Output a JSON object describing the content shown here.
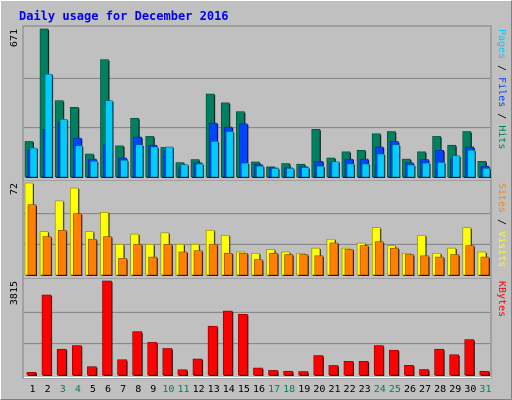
{
  "chart_data": {
    "type": "bar",
    "title": "Daily usage for December 2016",
    "days": [
      "1",
      "2",
      "3",
      "4",
      "5",
      "6",
      "7",
      "8",
      "9",
      "10",
      "11",
      "12",
      "13",
      "14",
      "15",
      "16",
      "17",
      "18",
      "19",
      "20",
      "21",
      "22",
      "23",
      "24",
      "25",
      "26",
      "27",
      "28",
      "29",
      "30",
      "31"
    ],
    "weekend_days": [
      "3",
      "4",
      "10",
      "11",
      "17",
      "18",
      "24",
      "25",
      "31"
    ],
    "panels": [
      {
        "id": "top",
        "max_label": "671",
        "ymax": 671,
        "legend": [
          {
            "text": "Pages",
            "color": "#00ccff"
          },
          {
            "text": " / ",
            "color": "#000000"
          },
          {
            "text": "Files",
            "color": "#0044ff"
          },
          {
            "text": " / ",
            "color": "#000000"
          },
          {
            "text": "Hits",
            "color": "#008060"
          }
        ],
        "series": [
          {
            "name": "Hits",
            "color": "#008060",
            "values": [
              161,
              671,
              346,
              316,
              104,
              532,
              141,
              266,
              184,
              134,
              65,
              79,
              376,
              336,
              296,
              68,
              46,
              61,
              58,
              216,
              86,
              114,
              121,
              196,
              206,
              81,
              114,
              184,
              144,
              206,
              71
            ]
          },
          {
            "name": "Files",
            "color": "#0044ff",
            "values": [
              121,
              216,
              247,
              176,
              81,
              146,
              86,
              181,
              144,
              121,
              46,
              64,
              244,
              226,
              241,
              56,
              41,
              41,
              46,
              71,
              64,
              81,
              81,
              136,
              161,
              64,
              79,
              121,
              86,
              136,
              49
            ]
          },
          {
            "name": "Pages",
            "color": "#00ccff",
            "values": [
              131,
              466,
              261,
              141,
              71,
              346,
              76,
              146,
              136,
              136,
              56,
              59,
              161,
              206,
              63,
              49,
              39,
              39,
              43,
              49,
              69,
              59,
              59,
              104,
              146,
              54,
              63,
              66,
              96,
              121,
              39
            ]
          }
        ]
      },
      {
        "id": "middle",
        "max_label": "72",
        "ymax": 72,
        "legend": [
          {
            "text": "Sites",
            "color": "#ff8000"
          },
          {
            "text": " / ",
            "color": "#000000"
          },
          {
            "text": "Visits",
            "color": "#ffff00"
          }
        ],
        "series": [
          {
            "name": "Visits",
            "color": "#ffff00",
            "values": [
              72,
              34,
              58,
              68,
              34,
              49,
              24,
              32,
              24,
              33,
              24,
              24,
              35,
              31,
              18,
              17,
              20,
              18,
              17,
              21,
              28,
              21,
              25,
              37,
              23,
              17,
              31,
              17,
              21,
              37,
              18
            ]
          },
          {
            "name": "Sites",
            "color": "#ff8000",
            "values": [
              55,
              30,
              35,
              48,
              28,
              30,
              13,
              24,
              14,
              24,
              18,
              19,
              24,
              17,
              17,
              12,
              17,
              16,
              16,
              15,
              25,
              20,
              23,
              26,
              21,
              16,
              15,
              14,
              16,
              23,
              14
            ]
          }
        ]
      },
      {
        "id": "bottom",
        "max_label": "3815",
        "ymax": 3815,
        "legend": [
          {
            "text": "KBytes",
            "color": "#ff0000"
          }
        ],
        "series": [
          {
            "name": "KBytes",
            "color": "#ff0000",
            "values": [
              108,
              3245,
              1046,
              1194,
              336,
              3815,
              618,
              1760,
              1324,
              1076,
              212,
              648,
              1978,
              2593,
              2464,
              282,
              187,
              152,
              140,
              790,
              387,
              555,
              555,
              1194,
              1006,
              392,
              222,
              1046,
              821,
              1436,
              152
            ]
          }
        ]
      }
    ]
  },
  "colors": {
    "background": "#c0c0c0",
    "plot_background": "#c0c0c0",
    "title": "#0000ff",
    "weekend_label": "#00805c",
    "weekday_label": "#000000",
    "gridline": "#808080"
  }
}
